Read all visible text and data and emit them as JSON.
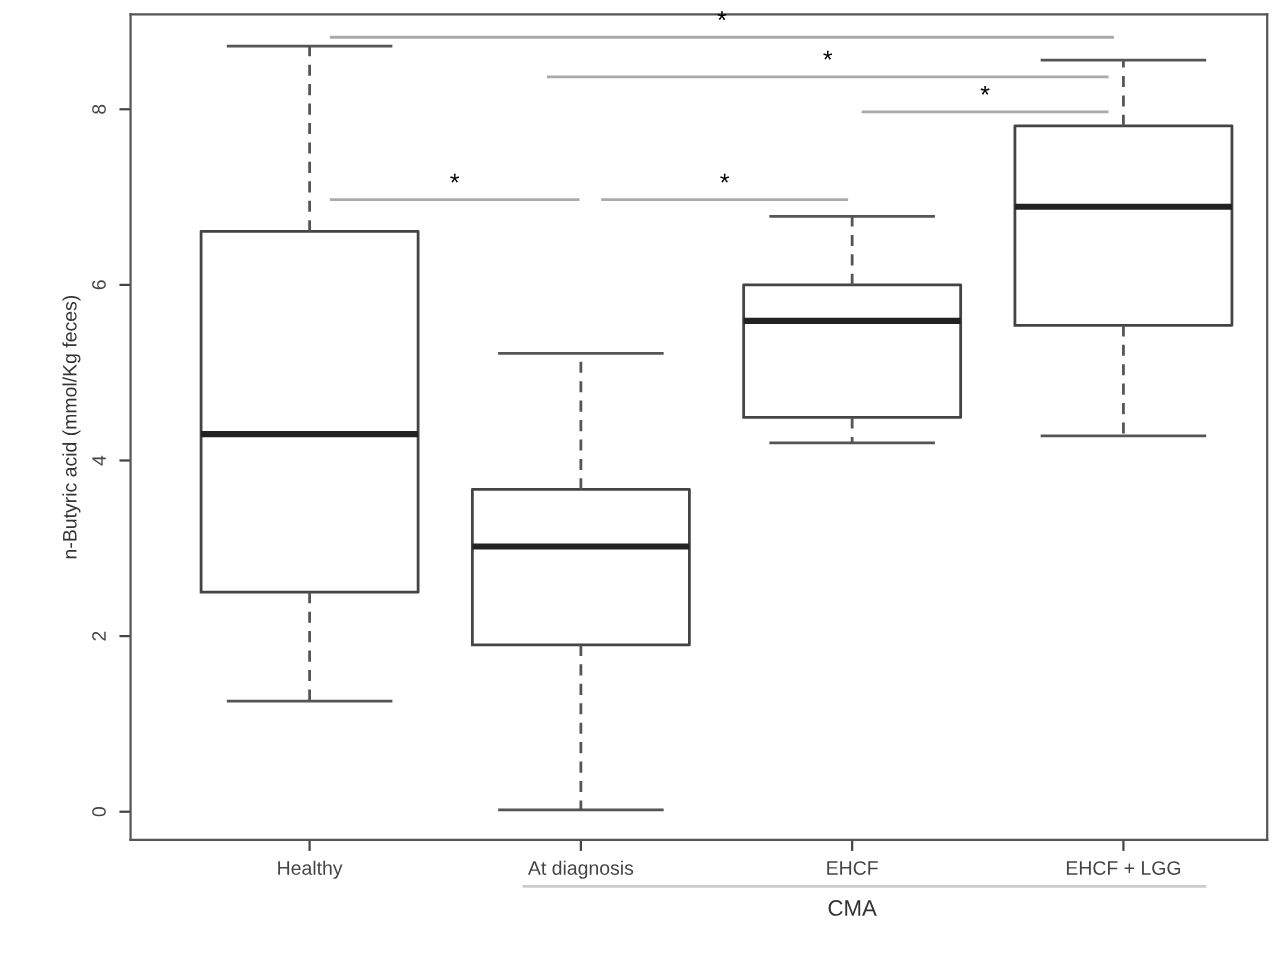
{
  "chart_data": {
    "type": "box",
    "xlabel": "CMA",
    "ylabel": "n-Butyric acid (mmol/Kg feces)",
    "categories": [
      "Healthy",
      "At diagnosis",
      "EHCF",
      "EHCF + LGG"
    ],
    "boxes": [
      {
        "low": 1.26,
        "q1": 2.5,
        "median": 4.3,
        "q3": 6.61,
        "high": 8.72
      },
      {
        "low": 0.02,
        "q1": 1.9,
        "median": 3.02,
        "q3": 3.67,
        "high": 5.22
      },
      {
        "low": 4.2,
        "q1": 4.49,
        "median": 5.59,
        "q3": 6.0,
        "high": 6.78
      },
      {
        "low": 4.28,
        "q1": 5.54,
        "median": 6.89,
        "q3": 7.81,
        "high": 8.56
      }
    ],
    "ylim": [
      -0.32,
      9.08
    ],
    "yticks": [
      0,
      2,
      4,
      6,
      8
    ],
    "grid": false,
    "annotations": [
      "*",
      "*",
      "*",
      "*",
      "*"
    ]
  }
}
